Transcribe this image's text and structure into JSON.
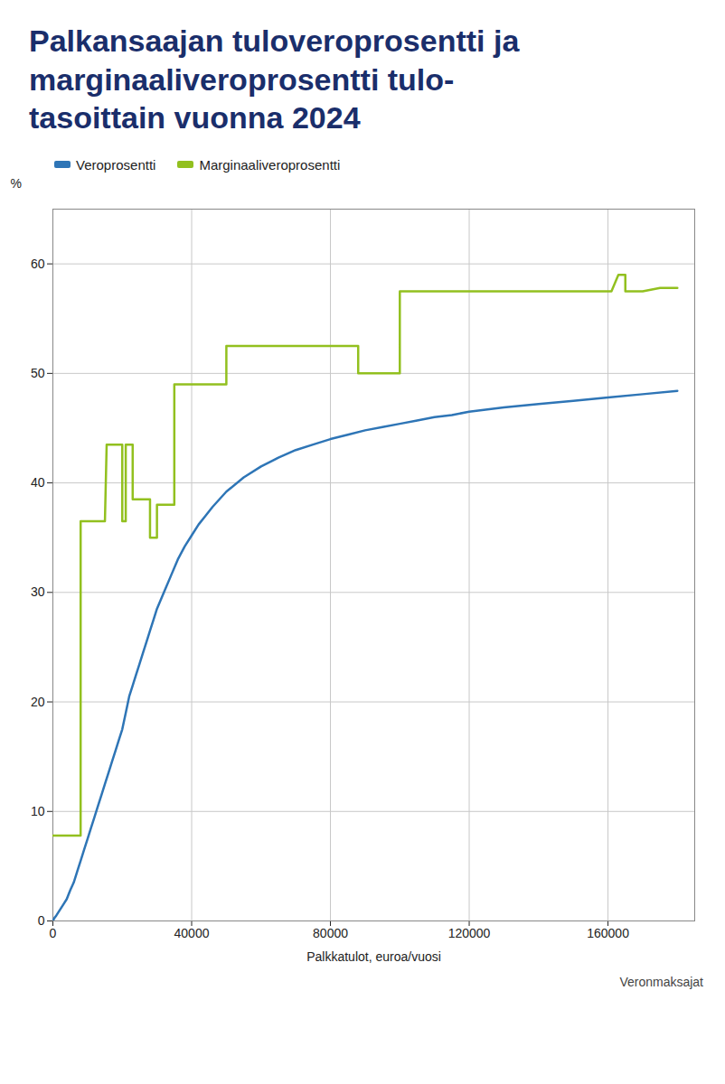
{
  "chart_data": {
    "type": "line",
    "title": "Palkansaajan tuloveroprosentti ja\nmarginaaliveroprosentti tulo-\ntasoittain vuonna 2024",
    "xlabel": "Palkkatulot, euroa/vuosi",
    "ylabel": "%",
    "source": "Veronmaksajat",
    "xlim": [
      0,
      185000
    ],
    "ylim": [
      0,
      65
    ],
    "xticks": [
      0,
      40000,
      80000,
      120000,
      160000
    ],
    "yticks": [
      0,
      10,
      20,
      30,
      40,
      50,
      60
    ],
    "grid": true,
    "legend": "top",
    "series": [
      {
        "name": "Veroprosentti",
        "color": "#2E75B6",
        "x": [
          0,
          500,
          1000,
          2000,
          3000,
          4000,
          5000,
          6000,
          7000,
          8000,
          9000,
          10000,
          11000,
          12000,
          13000,
          14000,
          15000,
          16000,
          17000,
          18000,
          19000,
          20000,
          21000,
          22000,
          23000,
          24000,
          25000,
          26000,
          27000,
          28000,
          29000,
          30000,
          32000,
          34000,
          36000,
          38000,
          40000,
          42000,
          44000,
          46000,
          48000,
          50000,
          55000,
          60000,
          65000,
          70000,
          75000,
          80000,
          85000,
          90000,
          95000,
          100000,
          105000,
          110000,
          115000,
          120000,
          130000,
          140000,
          150000,
          160000,
          170000,
          180000
        ],
        "values": [
          0,
          0.3,
          0.5,
          1.0,
          1.5,
          2.0,
          2.8,
          3.5,
          4.5,
          5.5,
          6.5,
          7.5,
          8.5,
          9.5,
          10.5,
          11.5,
          12.5,
          13.5,
          14.5,
          15.5,
          16.5,
          17.5,
          19.0,
          20.5,
          21.5,
          22.5,
          23.5,
          24.5,
          25.5,
          26.5,
          27.5,
          28.5,
          30.0,
          31.5,
          33.0,
          34.2,
          35.2,
          36.2,
          37.0,
          37.8,
          38.5,
          39.2,
          40.5,
          41.5,
          42.3,
          43.0,
          43.5,
          44.0,
          44.4,
          44.8,
          45.1,
          45.4,
          45.7,
          46.0,
          46.2,
          46.5,
          46.9,
          47.2,
          47.5,
          47.8,
          48.1,
          48.4
        ]
      },
      {
        "name": "Marginaaliveroprosentti",
        "color": "#92C01F",
        "x": [
          0,
          1000,
          5000,
          6000,
          7000,
          8000,
          8001,
          9000,
          10000,
          11000,
          12000,
          13000,
          14000,
          15000,
          15500,
          16000,
          17000,
          18000,
          19000,
          20000,
          20001,
          20500,
          21000,
          21001,
          22000,
          23000,
          23001,
          23500,
          24000,
          25000,
          26000,
          27000,
          28000,
          28001,
          28500,
          29000,
          30000,
          30001,
          31000,
          32000,
          33000,
          34000,
          35000,
          35001,
          36000,
          37000,
          38000,
          39000,
          40000,
          40001,
          42000,
          44000,
          46000,
          48000,
          50000,
          50001,
          52000,
          54000,
          56000,
          58000,
          60000,
          62000,
          64000,
          65000,
          66000,
          68000,
          70000,
          72000,
          74000,
          76000,
          78000,
          80000,
          82000,
          84000,
          86000,
          88000,
          88001,
          90000,
          92000,
          94000,
          96000,
          98000,
          100000,
          100001,
          102000,
          104000,
          106000,
          108000,
          110000,
          115000,
          120000,
          130000,
          140000,
          150000,
          160000,
          161000,
          163000,
          165000,
          165001,
          167000,
          170000,
          175000,
          180000
        ],
        "values": [
          7.8,
          7.8,
          7.8,
          7.8,
          7.8,
          7.8,
          36.5,
          36.5,
          36.5,
          36.5,
          36.5,
          36.5,
          36.5,
          36.5,
          43.5,
          43.5,
          43.5,
          43.5,
          43.5,
          43.5,
          36.5,
          36.5,
          36.5,
          43.5,
          43.5,
          43.5,
          38.5,
          38.5,
          38.5,
          38.5,
          38.5,
          38.5,
          38.5,
          35.0,
          35.0,
          35.0,
          35.0,
          38.0,
          38.0,
          38.0,
          38.0,
          38.0,
          38.0,
          49.0,
          49.0,
          49.0,
          49.0,
          49.0,
          49.0,
          49.0,
          49.0,
          49.0,
          49.0,
          49.0,
          49.0,
          52.5,
          52.5,
          52.5,
          52.5,
          52.5,
          52.5,
          52.5,
          52.5,
          52.5,
          52.5,
          52.5,
          52.5,
          52.5,
          52.5,
          52.5,
          52.5,
          52.5,
          52.5,
          52.5,
          52.5,
          52.5,
          50.0,
          50.0,
          50.0,
          50.0,
          50.0,
          50.0,
          50.0,
          57.5,
          57.5,
          57.5,
          57.5,
          57.5,
          57.5,
          57.5,
          57.5,
          57.5,
          57.5,
          57.5,
          57.5,
          57.5,
          59.0,
          59.0,
          57.5,
          57.5,
          57.5,
          57.8,
          57.8
        ]
      }
    ]
  }
}
